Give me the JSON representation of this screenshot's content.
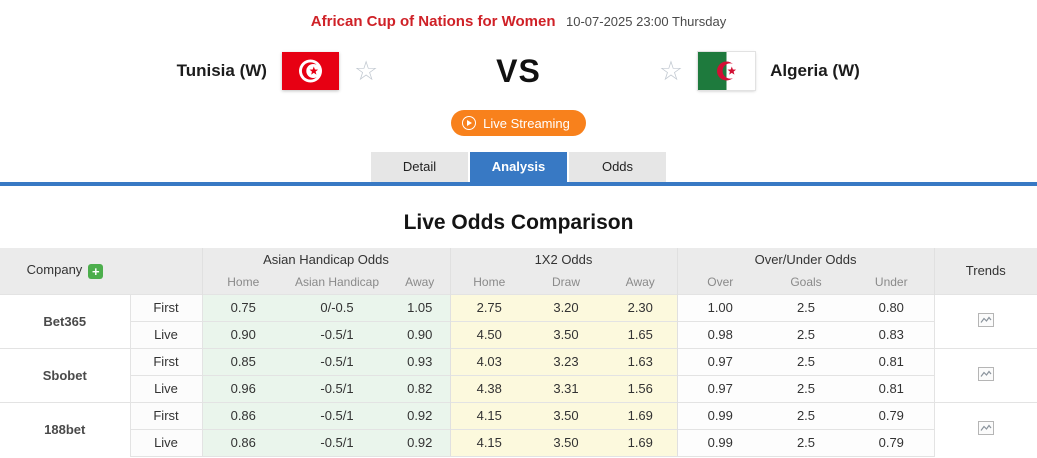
{
  "header": {
    "league": "African Cup of Nations for Women",
    "datetime": "10-07-2025 23:00 Thursday"
  },
  "match": {
    "home_name": "Tunisia (W)",
    "away_name": "Algeria (W)",
    "vs_label": "VS"
  },
  "live_button": {
    "label": "Live Streaming"
  },
  "tabs": [
    {
      "label": "Detail",
      "active": false
    },
    {
      "label": "Analysis",
      "active": true
    },
    {
      "label": "Odds",
      "active": false
    }
  ],
  "section_title": "Live Odds Comparison",
  "odds_table": {
    "company_header": "Company",
    "add_company_label": "+",
    "groups": [
      {
        "title": "Asian Handicap Odds",
        "cols": [
          "Home",
          "Asian Handicap",
          "Away"
        ]
      },
      {
        "title": "1X2 Odds",
        "cols": [
          "Home",
          "Draw",
          "Away"
        ]
      },
      {
        "title": "Over/Under Odds",
        "cols": [
          "Over",
          "Goals",
          "Under"
        ]
      }
    ],
    "trends_header": "Trends",
    "companies": [
      {
        "name": "Bet365",
        "rows": [
          {
            "type": "First",
            "ah": [
              "0.75",
              "0/-0.5",
              "1.05"
            ],
            "x12": [
              "2.75",
              "3.20",
              "2.30"
            ],
            "ou": [
              "1.00",
              "2.5",
              "0.80"
            ]
          },
          {
            "type": "Live",
            "ah": [
              "0.90",
              "-0.5/1",
              "0.90"
            ],
            "x12": [
              "4.50",
              "3.50",
              "1.65"
            ],
            "ou": [
              "0.98",
              "2.5",
              "0.83"
            ]
          }
        ]
      },
      {
        "name": "Sbobet",
        "rows": [
          {
            "type": "First",
            "ah": [
              "0.85",
              "-0.5/1",
              "0.93"
            ],
            "x12": [
              "4.03",
              "3.23",
              "1.63"
            ],
            "ou": [
              "0.97",
              "2.5",
              "0.81"
            ]
          },
          {
            "type": "Live",
            "ah": [
              "0.96",
              "-0.5/1",
              "0.82"
            ],
            "x12": [
              "4.38",
              "3.31",
              "1.56"
            ],
            "ou": [
              "0.97",
              "2.5",
              "0.81"
            ]
          }
        ]
      },
      {
        "name": "188bet",
        "rows": [
          {
            "type": "First",
            "ah": [
              "0.86",
              "-0.5/1",
              "0.92"
            ],
            "x12": [
              "4.15",
              "3.50",
              "1.69"
            ],
            "ou": [
              "0.99",
              "2.5",
              "0.79"
            ]
          },
          {
            "type": "Live",
            "ah": [
              "0.86",
              "-0.5/1",
              "0.92"
            ],
            "x12": [
              "4.15",
              "3.50",
              "1.69"
            ],
            "ou": [
              "0.99",
              "2.5",
              "0.79"
            ]
          }
        ]
      }
    ]
  },
  "colors": {
    "accent_red": "#cf2127",
    "accent_orange": "#f8811c",
    "accent_blue": "#3879c4",
    "plus_green": "#4cae4c",
    "asian_handicap_bg": "#eaf5ec",
    "x12_bg": "#fcf9dd",
    "header_bg": "#ebebeb",
    "tunisia_flag_red": "#e70013",
    "algeria_flag_green": "#1e7a3d",
    "algeria_flag_red": "#d21034"
  }
}
